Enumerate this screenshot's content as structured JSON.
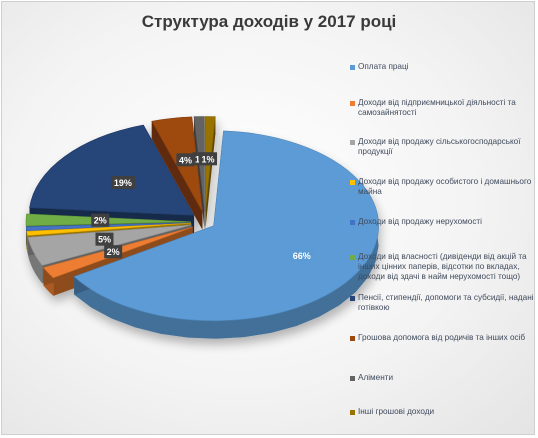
{
  "chart_data": {
    "type": "pie",
    "title": "Структура доходів у 2017 році",
    "categories": [
      "Оплата праці",
      "Доходи від підприємницької діяльності та самозайнятості",
      "Доходи від продажу сільськогосподарської продукції",
      "Доходи від продажу особистого і домашнього майна",
      "Доходи від продажу нерухомості",
      "Доходи від власності (дивіденди від акцій та інших цінних паперів, відсотки по вкладах, доходи від здачі в найм нерухомості тощо)",
      "Пенсії, стипендії, допомоги та субсидії, надані готівкою",
      "Грошова допомога від родичів та інших осіб",
      "Аліменти",
      "Інші грошові доходи"
    ],
    "values": [
      66,
      2,
      5,
      0,
      0,
      2,
      19,
      4,
      1,
      1
    ],
    "labels": [
      "66%",
      "2%",
      "5%",
      "",
      "",
      "2%",
      "19%",
      "4%",
      "1%",
      "1%"
    ],
    "colors": [
      "#5b9bd5",
      "#ed7d31",
      "#a5a5a5",
      "#ffc000",
      "#4472c4",
      "#70ad47",
      "#264478",
      "#9e480e",
      "#636363",
      "#997300"
    ],
    "legend_position": "right",
    "style": "3d-exploded"
  }
}
